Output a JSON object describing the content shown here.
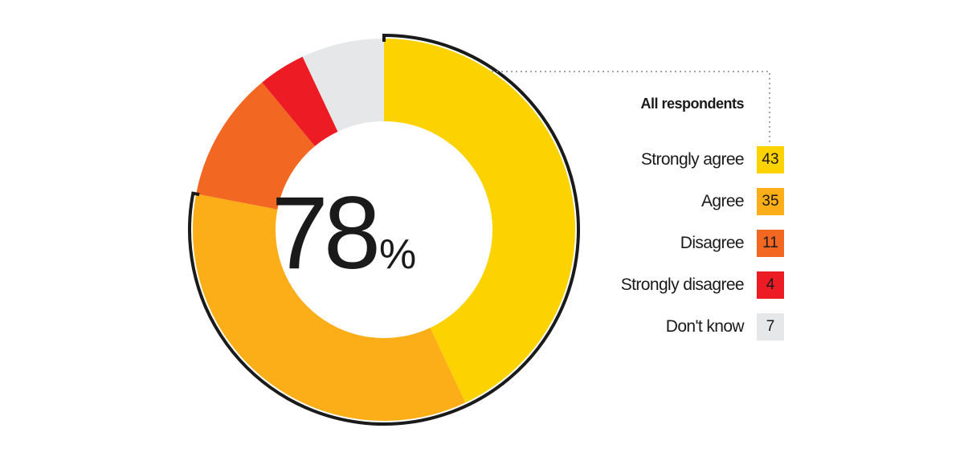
{
  "chart_data": {
    "type": "donut",
    "legend_title": "All respondents",
    "center_value": "78",
    "center_unit": "%",
    "legend_position": "right",
    "categories": [
      "Strongly agree",
      "Agree",
      "Disagree",
      "Strongly disagree",
      "Don't know"
    ],
    "values": [
      43,
      35,
      11,
      4,
      7
    ],
    "colors": [
      "#FCD200",
      "#FBAE17",
      "#F26722",
      "#ED1C24",
      "#E6E7E8"
    ],
    "highlight": {
      "categories": [
        "Strongly agree",
        "Agree"
      ],
      "total": 78
    }
  }
}
